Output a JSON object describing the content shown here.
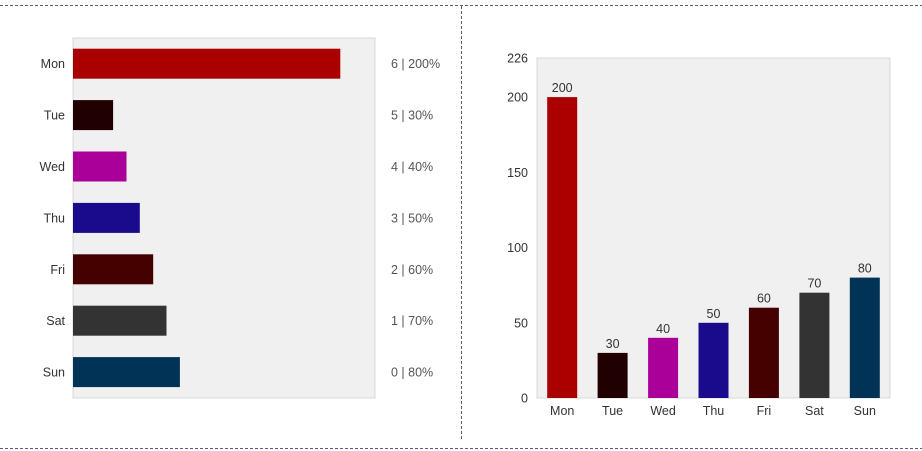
{
  "chart_data": [
    {
      "type": "bar",
      "orientation": "horizontal",
      "categories": [
        "Mon",
        "Tue",
        "Wed",
        "Thu",
        "Fri",
        "Sat",
        "Sun"
      ],
      "values": [
        200,
        30,
        40,
        50,
        60,
        70,
        80
      ],
      "right_labels": [
        "6 | 200%",
        "5 | 30%",
        "4 | 40%",
        "3 | 50%",
        "2 | 60%",
        "1 | 70%",
        "0 | 80%"
      ],
      "colors": [
        "#aa0000",
        "#200000",
        "#aa0099",
        "#1a0a8c",
        "#450000",
        "#333333",
        "#003355"
      ],
      "xlim": [
        0,
        226
      ],
      "grid": false,
      "background": "#f0f0f0"
    },
    {
      "type": "bar",
      "orientation": "vertical",
      "categories": [
        "Mon",
        "Tue",
        "Wed",
        "Thu",
        "Fri",
        "Sat",
        "Sun"
      ],
      "values": [
        200,
        30,
        40,
        50,
        60,
        70,
        80
      ],
      "data_labels": [
        "200",
        "30",
        "40",
        "50",
        "60",
        "70",
        "80"
      ],
      "colors": [
        "#aa0000",
        "#200000",
        "#aa0099",
        "#1a0a8c",
        "#450000",
        "#333333",
        "#003355"
      ],
      "ylim": [
        0,
        226
      ],
      "yticks": [
        0,
        50,
        100,
        150,
        200,
        226
      ],
      "ytick_labels": [
        "0",
        "50",
        "100",
        "150",
        "200",
        "226"
      ],
      "grid": false,
      "background": "#f0f0f0"
    }
  ]
}
